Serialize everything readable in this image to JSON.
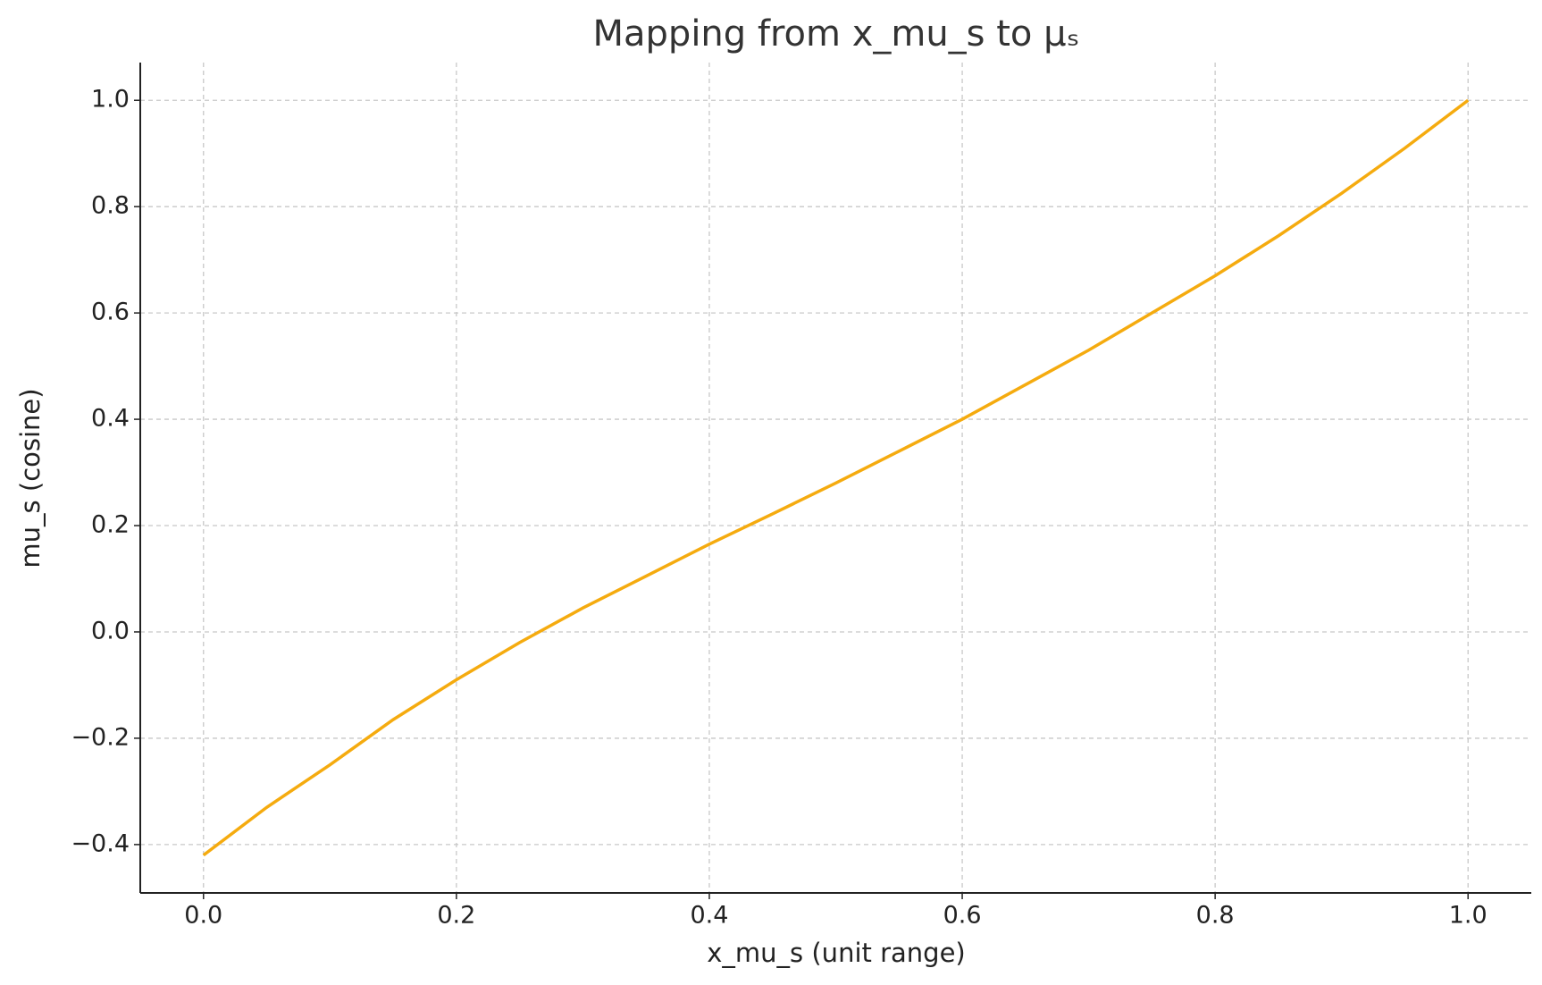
{
  "chart_data": {
    "type": "line",
    "title": "Mapping from x_mu_s to μₛ",
    "x_label": "x_mu_s (unit range)",
    "y_label": "mu_s (cosine)",
    "x": [
      0,
      0.05,
      0.1,
      0.15,
      0.2,
      0.25,
      0.3,
      0.35,
      0.4,
      0.45,
      0.5,
      0.55,
      0.6,
      0.65,
      0.7,
      0.75,
      0.8,
      0.85,
      0.9,
      0.95,
      1.0
    ],
    "series": [
      {
        "name": "mu_s",
        "color": "#f5ab0f",
        "values": [
          -0.42,
          -0.33,
          -0.25,
          -0.165,
          -0.09,
          -0.02,
          0.045,
          0.105,
          0.165,
          0.222,
          0.28,
          0.34,
          0.4,
          0.465,
          0.53,
          0.6,
          0.67,
          0.745,
          0.825,
          0.91,
          1.0
        ]
      }
    ],
    "xlim": [
      -0.05,
      1.05
    ],
    "ylim": [
      -0.491,
      1.071
    ],
    "xticks": [
      {
        "value": 0,
        "label": "0.0"
      },
      {
        "value": 0.2,
        "label": "0.2"
      },
      {
        "value": 0.4,
        "label": "0.4"
      },
      {
        "value": 0.6,
        "label": "0.6"
      },
      {
        "value": 0.8,
        "label": "0.8"
      },
      {
        "value": 1.0,
        "label": "1.0"
      }
    ],
    "yticks": [
      {
        "value": -0.4,
        "label": "−0.4"
      },
      {
        "value": -0.2,
        "label": "−0.2"
      },
      {
        "value": 0,
        "label": "0.0"
      },
      {
        "value": 0.2,
        "label": "0.2"
      },
      {
        "value": 0.4,
        "label": "0.4"
      },
      {
        "value": 0.6,
        "label": "0.6"
      },
      {
        "value": 0.8,
        "label": "0.8"
      },
      {
        "value": 1.0,
        "label": "1.0"
      }
    ],
    "grid": true
  }
}
